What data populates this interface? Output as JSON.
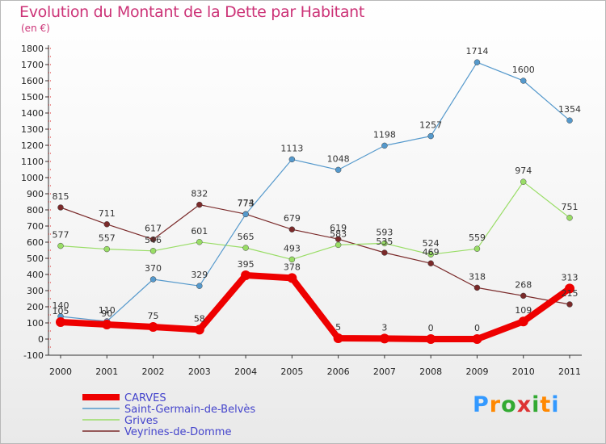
{
  "header": {
    "title": "Evolution du Montant de la Dette par Habitant",
    "subtitle": "(en €)"
  },
  "logo": {
    "text": "Proxiti",
    "colors": [
      "#3399ff",
      "#ff8800",
      "#33aa33",
      "#dd3333",
      "#33aa33",
      "#ff8800",
      "#3399ff"
    ]
  },
  "chart_data": {
    "type": "line",
    "title": "Evolution du Montant de la Dette par Habitant",
    "ylabel": "(en €)",
    "xlabel": "",
    "x": [
      "2000",
      "2001",
      "2002",
      "2003",
      "2004",
      "2005",
      "2006",
      "2007",
      "2008",
      "2009",
      "2010",
      "2011"
    ],
    "ylim": [
      -100,
      1800
    ],
    "yticks": [
      "-100",
      "0",
      "100",
      "200",
      "300",
      "400",
      "500",
      "600",
      "700",
      "800",
      "900",
      "1000",
      "1100",
      "1200",
      "1300",
      "1400",
      "1500",
      "1600",
      "1700",
      "1800"
    ],
    "grid": false,
    "legend": "bottom-left",
    "series": [
      {
        "name": "CARVES",
        "color": "#ee0000",
        "values": [
          105,
          90,
          75,
          58,
          395,
          378,
          5,
          3,
          0,
          0,
          109,
          313
        ]
      },
      {
        "name": "Saint-Germain-de-Belvès",
        "color": "#5599cc",
        "values": [
          140,
          110,
          370,
          329,
          773,
          1113,
          1048,
          1198,
          1257,
          1714,
          1600,
          1354
        ]
      },
      {
        "name": "Grives",
        "color": "#99dd66",
        "values": [
          577,
          557,
          546,
          601,
          565,
          493,
          583,
          593,
          524,
          559,
          974,
          751
        ]
      },
      {
        "name": "Veyrines-de-Domme",
        "color": "#7a2a2a",
        "values": [
          815,
          711,
          617,
          832,
          774,
          679,
          619,
          535,
          469,
          318,
          268,
          215
        ]
      }
    ],
    "labels": [
      [
        "105",
        "90",
        "75",
        "58",
        "395",
        "378",
        "5",
        "3",
        "0",
        "0",
        "109",
        "313"
      ],
      [
        "140",
        "110",
        "370",
        "329",
        "773",
        "1113",
        "1048",
        "1198",
        "1257",
        "1714",
        "1600",
        "1354"
      ],
      [
        "577",
        "557",
        "546",
        "601",
        "565",
        "493",
        "583",
        "593",
        "524",
        "559",
        "974",
        "751"
      ],
      [
        "815",
        "711",
        "617",
        "832",
        "774",
        "679",
        "619",
        "535",
        "469",
        "318",
        "268",
        "215"
      ]
    ]
  }
}
